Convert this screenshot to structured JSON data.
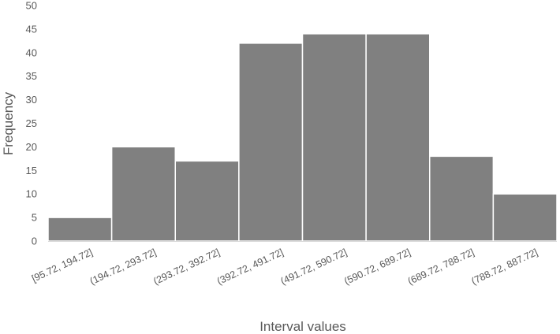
{
  "chart_data": {
    "type": "bar",
    "title": "",
    "xlabel": "Interval values",
    "ylabel": "Frequency",
    "categories": [
      "[95.72, 194.72]",
      "(194.72, 293.72]",
      "(293.72, 392.72]",
      "(392.72, 491.72]",
      "(491.72, 590.72]",
      "(590.72, 689.72]",
      "(689.72, 788.72]",
      "(788.72, 887.72]"
    ],
    "values": [
      5,
      20,
      17,
      42,
      44,
      44,
      18,
      10
    ],
    "ylim": [
      0,
      50
    ],
    "yticks": [
      0,
      5,
      10,
      15,
      20,
      25,
      30,
      35,
      40,
      45,
      50
    ],
    "grid": false,
    "bar_color": "#808080",
    "legend": "none"
  }
}
